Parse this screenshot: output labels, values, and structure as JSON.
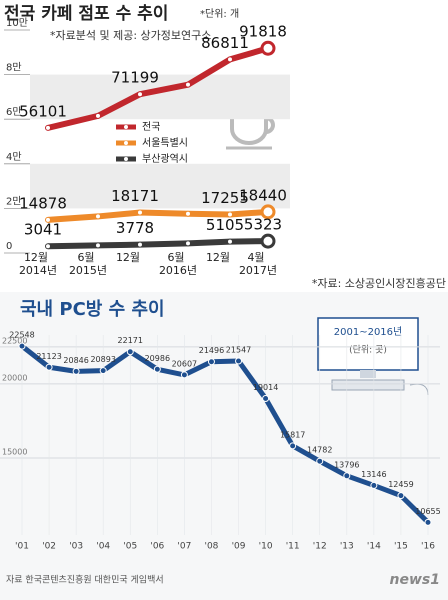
{
  "chart_data": [
    {
      "type": "line",
      "title": "전국 카페 점포 수 추이",
      "unit": "*단위: 개",
      "note": "*자료분석 및 제공: 상가정보연구소",
      "source": "*자료: 소상공인시장진흥공단",
      "categories": [
        "12월",
        "6월",
        "12월",
        "6월",
        "12월",
        "4월"
      ],
      "year_labels": [
        "2014년",
        "2015년",
        null,
        "2016년",
        null,
        "2017년"
      ],
      "ylim": [
        0,
        100000
      ],
      "yticks": [
        0,
        {
          "value": 20000,
          "label": "2만"
        },
        {
          "value": 40000,
          "label": "4만"
        },
        {
          "value": 60000,
          "label": "6만"
        },
        {
          "value": 80000,
          "label": "8만"
        },
        {
          "value": 100000,
          "label": "10만"
        }
      ],
      "legend": "center",
      "series": [
        {
          "name": "전국",
          "color": "#c1272d",
          "values": [
            56101,
            61500,
            71199,
            75500,
            86811,
            91818
          ],
          "value_labels": [
            "56101",
            null,
            "71199",
            null,
            "86811",
            "91818"
          ]
        },
        {
          "name": "서울특별시",
          "color": "#ee8a2a",
          "values": [
            14878,
            16400,
            18171,
            17600,
            17255,
            18440
          ],
          "value_labels": [
            "14878",
            null,
            "18171",
            null,
            "17255",
            "18440"
          ]
        },
        {
          "name": "부산광역시",
          "color": "#3a3a3a",
          "values": [
            3041,
            3400,
            3778,
            4300,
            5105,
            5323
          ],
          "value_labels": [
            "3041",
            null,
            "3778",
            null,
            "5105",
            "5323"
          ]
        }
      ]
    },
    {
      "type": "line",
      "title": "국내 PC방 수 추이",
      "period": "2001~2016년",
      "unit": "(단위: 곳)",
      "source": "자료 한국콘텐츠진흥원 대한민국 게임백서",
      "logo": "news1",
      "categories": [
        "'01",
        "'02",
        "'03",
        "'04",
        "'05",
        "'06",
        "'07",
        "'08",
        "'09",
        "'10",
        "'11",
        "'12",
        "'13",
        "'14",
        "'15",
        "'16"
      ],
      "ylim": [
        9800,
        23300
      ],
      "yticks": [
        15000,
        20000,
        22500
      ],
      "grid": true,
      "color": "#1f4f8f",
      "values": [
        22548,
        21123,
        20846,
        20893,
        22171,
        20986,
        20607,
        21496,
        21547,
        19014,
        15817,
        14782,
        13796,
        13146,
        12459,
        10655
      ]
    }
  ]
}
